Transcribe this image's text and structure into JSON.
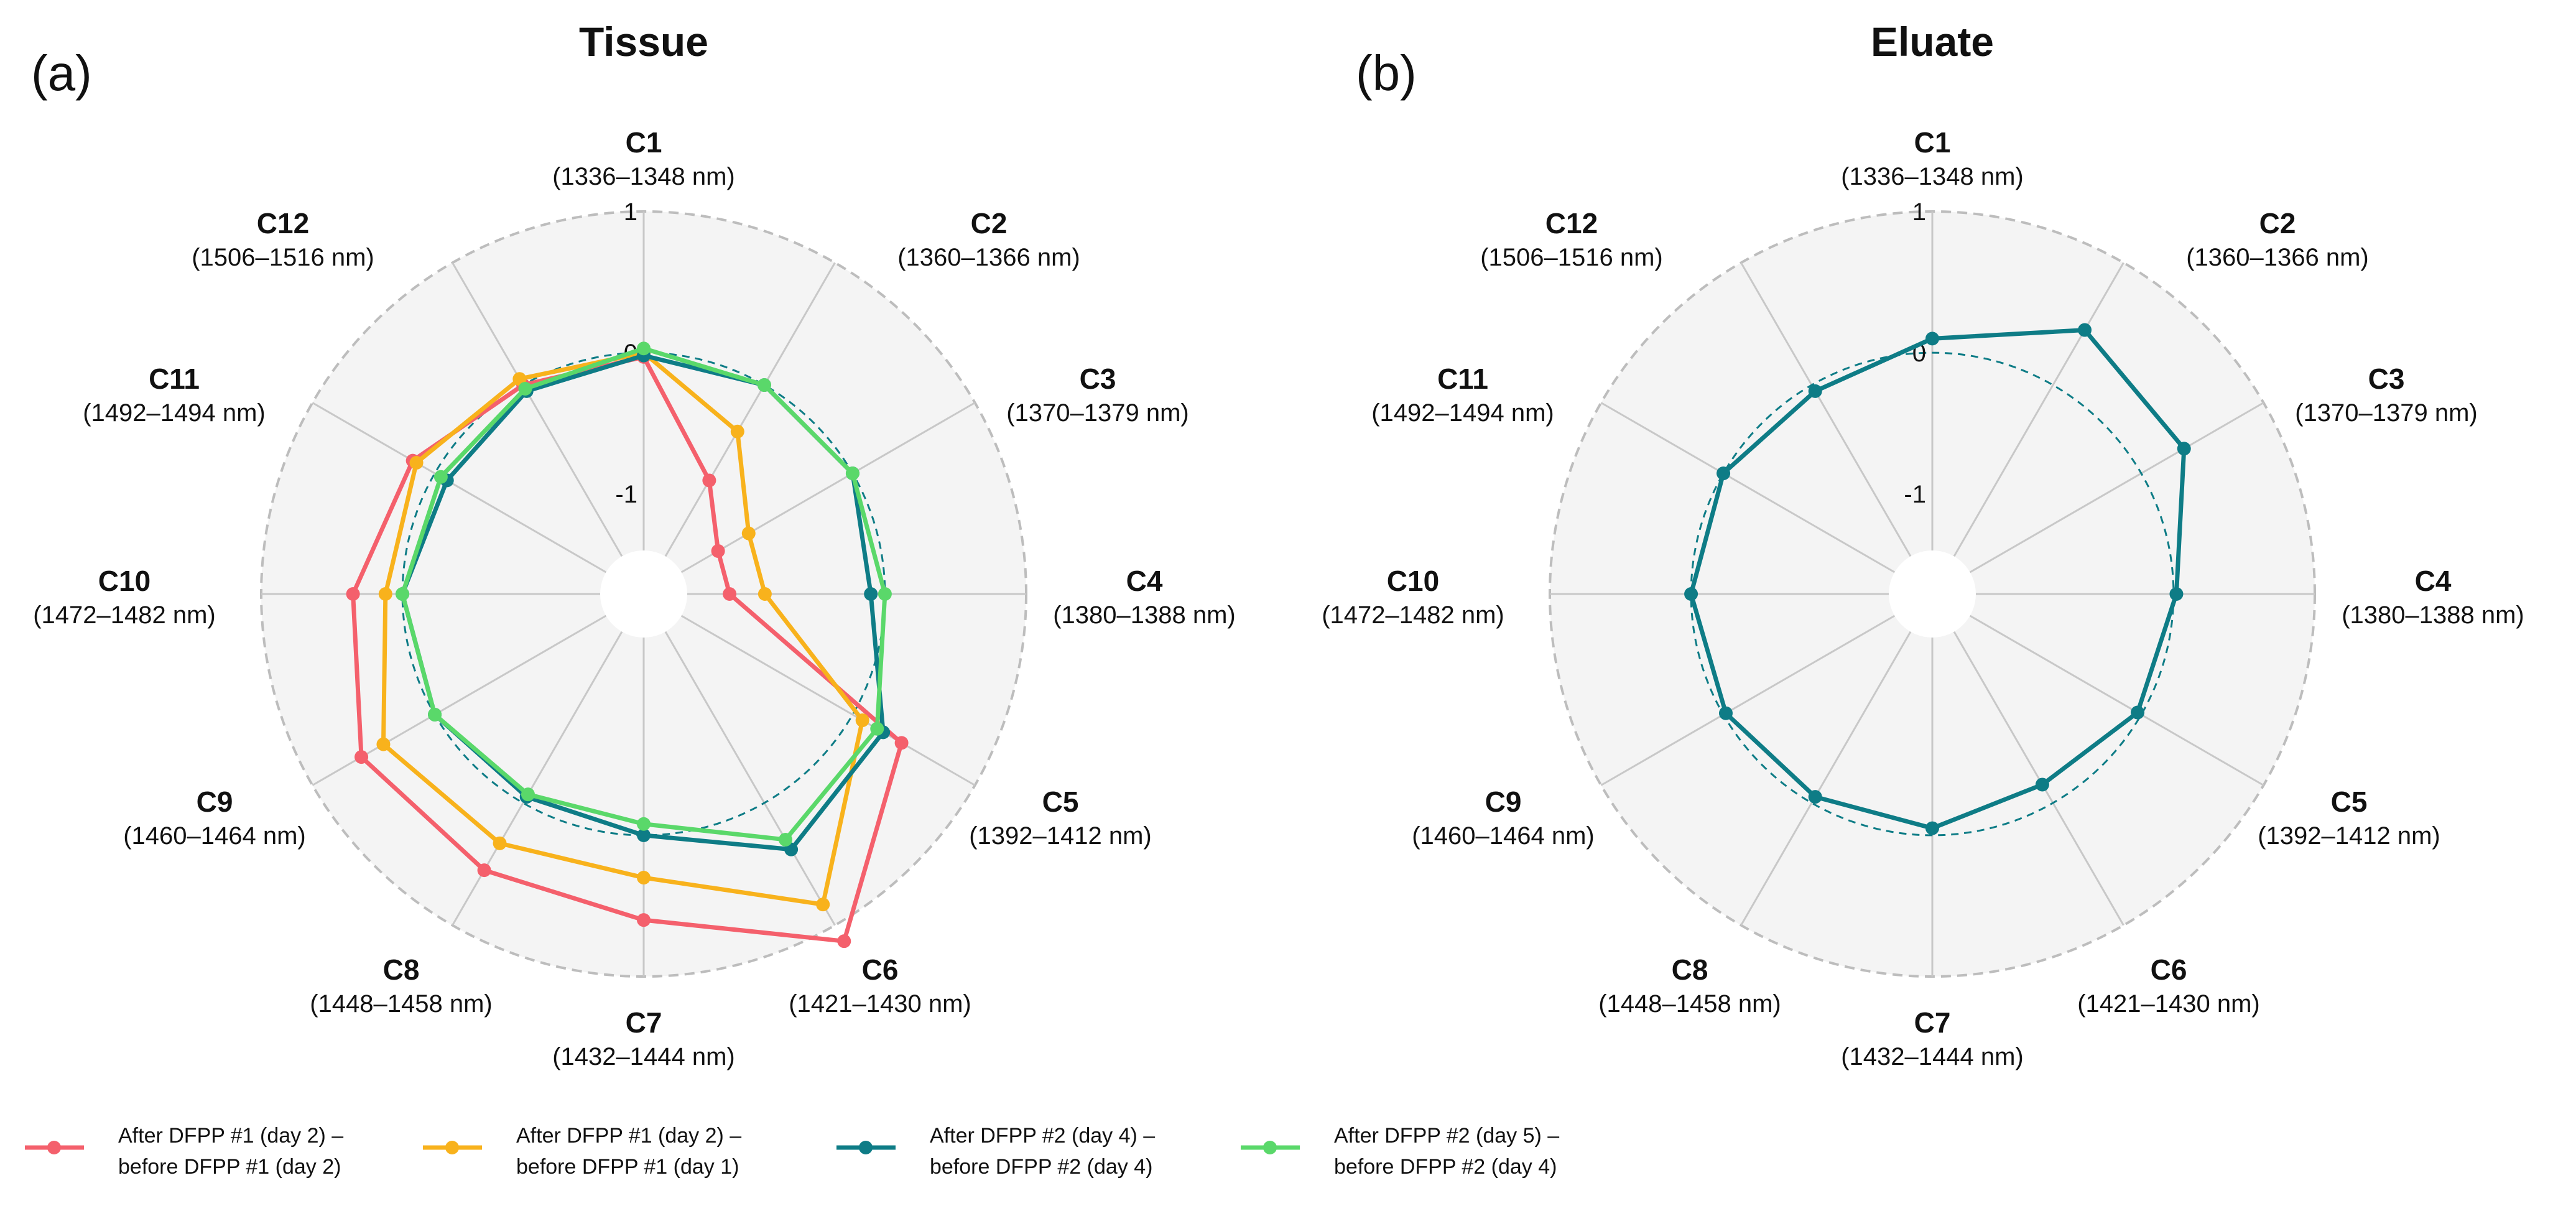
{
  "chart_data": [
    {
      "type": "radar",
      "panel": "(a)",
      "title": "Tissue",
      "categories": [
        "C1",
        "C2",
        "C3",
        "C4",
        "C5",
        "C6",
        "C7",
        "C8",
        "C9",
        "C10",
        "C11",
        "C12"
      ],
      "category_ranges": [
        "(1336–1348 nm)",
        "(1360–1366 nm)",
        "(1370–1379 nm)",
        "(1380–1388 nm)",
        "(1392–1412 nm)",
        "(1421–1430 nm)",
        "(1432–1444 nm)",
        "(1448–1458 nm)",
        "(1460–1464 nm)",
        "(1472–1482 nm)",
        "(1492–1494 nm)",
        "(1506–1516 nm)"
      ],
      "rlim": [
        -1.4,
        1
      ],
      "ticks": [
        {
          "value": 1,
          "label": "1"
        },
        {
          "value": 0,
          "label": "0"
        },
        {
          "value": -1,
          "label": "-1"
        }
      ],
      "reference_ring": 0,
      "series": [
        {
          "name": "After DFPP #1 (day 2) – before DFPP #1 (day 2)",
          "color": "#f4606c",
          "values": [
            -0.03,
            -0.78,
            -1.1,
            -1.1,
            0.4,
            1.13,
            0.6,
            0.55,
            0.6,
            0.35,
            0.18,
            0.0
          ]
        },
        {
          "name": "After DFPP #1 (day 2) – before DFPP #1 (day 1)",
          "color": "#f8b21c",
          "values": [
            0.0,
            -0.38,
            -0.85,
            -0.85,
            0.08,
            0.83,
            0.3,
            0.33,
            0.42,
            0.12,
            0.15,
            0.05
          ]
        },
        {
          "name": "After DFPP #2 (day 4) – before DFPP #2 (day 4)",
          "color": "#0e7c86",
          "values": [
            -0.02,
            0.0,
            0.0,
            -0.1,
            0.25,
            0.38,
            0.0,
            -0.05,
            0.0,
            0.0,
            -0.1,
            -0.05
          ]
        },
        {
          "name": "After DFPP #2 (day 5) – before DFPP #2 (day 4)",
          "color": "#5ad86a",
          "values": [
            0.03,
            0.0,
            0.0,
            0.0,
            0.2,
            0.3,
            -0.08,
            -0.07,
            0.0,
            0.0,
            -0.05,
            -0.03
          ]
        }
      ]
    },
    {
      "type": "radar",
      "panel": "(b)",
      "title": "Eluate",
      "categories": [
        "C1",
        "C2",
        "C3",
        "C4",
        "C5",
        "C6",
        "C7",
        "C8",
        "C9",
        "C10",
        "C11",
        "C12"
      ],
      "category_ranges": [
        "(1336–1348 nm)",
        "(1360–1366 nm)",
        "(1370–1379 nm)",
        "(1380–1388 nm)",
        "(1392–1412 nm)",
        "(1421–1430 nm)",
        "(1432–1444 nm)",
        "(1448–1458 nm)",
        "(1460–1464 nm)",
        "(1472–1482 nm)",
        "(1492–1494 nm)",
        "(1506–1516 nm)"
      ],
      "rlim": [
        -1.4,
        1
      ],
      "ticks": [
        {
          "value": 1,
          "label": "1"
        },
        {
          "value": 0,
          "label": "0"
        },
        {
          "value": -1,
          "label": "-1"
        }
      ],
      "reference_ring": 0,
      "series": [
        {
          "name": "Eluate",
          "color": "#0e7c86",
          "values": [
            0.1,
            0.45,
            0.35,
            0.02,
            -0.03,
            -0.15,
            -0.05,
            -0.05,
            -0.02,
            0.0,
            0.0,
            -0.05
          ]
        }
      ]
    }
  ],
  "legend": [
    {
      "line1": "After DFPP #1 (day 2) –",
      "line2": "before DFPP #1 (day 2)",
      "color": "#f4606c"
    },
    {
      "line1": "After DFPP #1 (day 2) –",
      "line2": "before DFPP #1 (day 1)",
      "color": "#f8b21c"
    },
    {
      "line1": "After DFPP #2 (day 4) –",
      "line2": "before DFPP #2 (day 4)",
      "color": "#0e7c86"
    },
    {
      "line1": "After DFPP #2 (day 5) –",
      "line2": "before DFPP #2 (day 4)",
      "color": "#5ad86a"
    }
  ]
}
